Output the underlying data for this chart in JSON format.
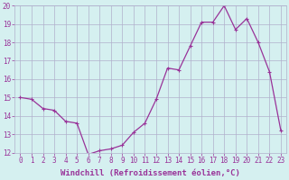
{
  "x": [
    0,
    1,
    2,
    3,
    4,
    5,
    6,
    7,
    8,
    9,
    10,
    11,
    12,
    13,
    14,
    15,
    16,
    17,
    18,
    19,
    20,
    21,
    22,
    23
  ],
  "y": [
    15.0,
    14.9,
    14.4,
    14.3,
    13.7,
    13.6,
    11.9,
    12.1,
    12.2,
    12.4,
    13.1,
    13.6,
    14.9,
    16.6,
    16.5,
    17.8,
    19.1,
    19.1,
    20.0,
    18.7,
    19.3,
    18.0,
    16.4,
    13.2
  ],
  "line_color": "#993399",
  "marker_color": "#993399",
  "bg_color": "#d5f0f0",
  "grid_color": "#b0b0cc",
  "xlabel": "Windchill (Refroidissement éolien,°C)",
  "tick_color": "#993399",
  "ylim": [
    12,
    20
  ],
  "xlim_min": -0.5,
  "xlim_max": 23.5,
  "yticks": [
    12,
    13,
    14,
    15,
    16,
    17,
    18,
    19,
    20
  ],
  "xticks": [
    0,
    1,
    2,
    3,
    4,
    5,
    6,
    7,
    8,
    9,
    10,
    11,
    12,
    13,
    14,
    15,
    16,
    17,
    18,
    19,
    20,
    21,
    22,
    23
  ],
  "tick_fontsize": 5.5,
  "xlabel_fontsize": 6.5
}
